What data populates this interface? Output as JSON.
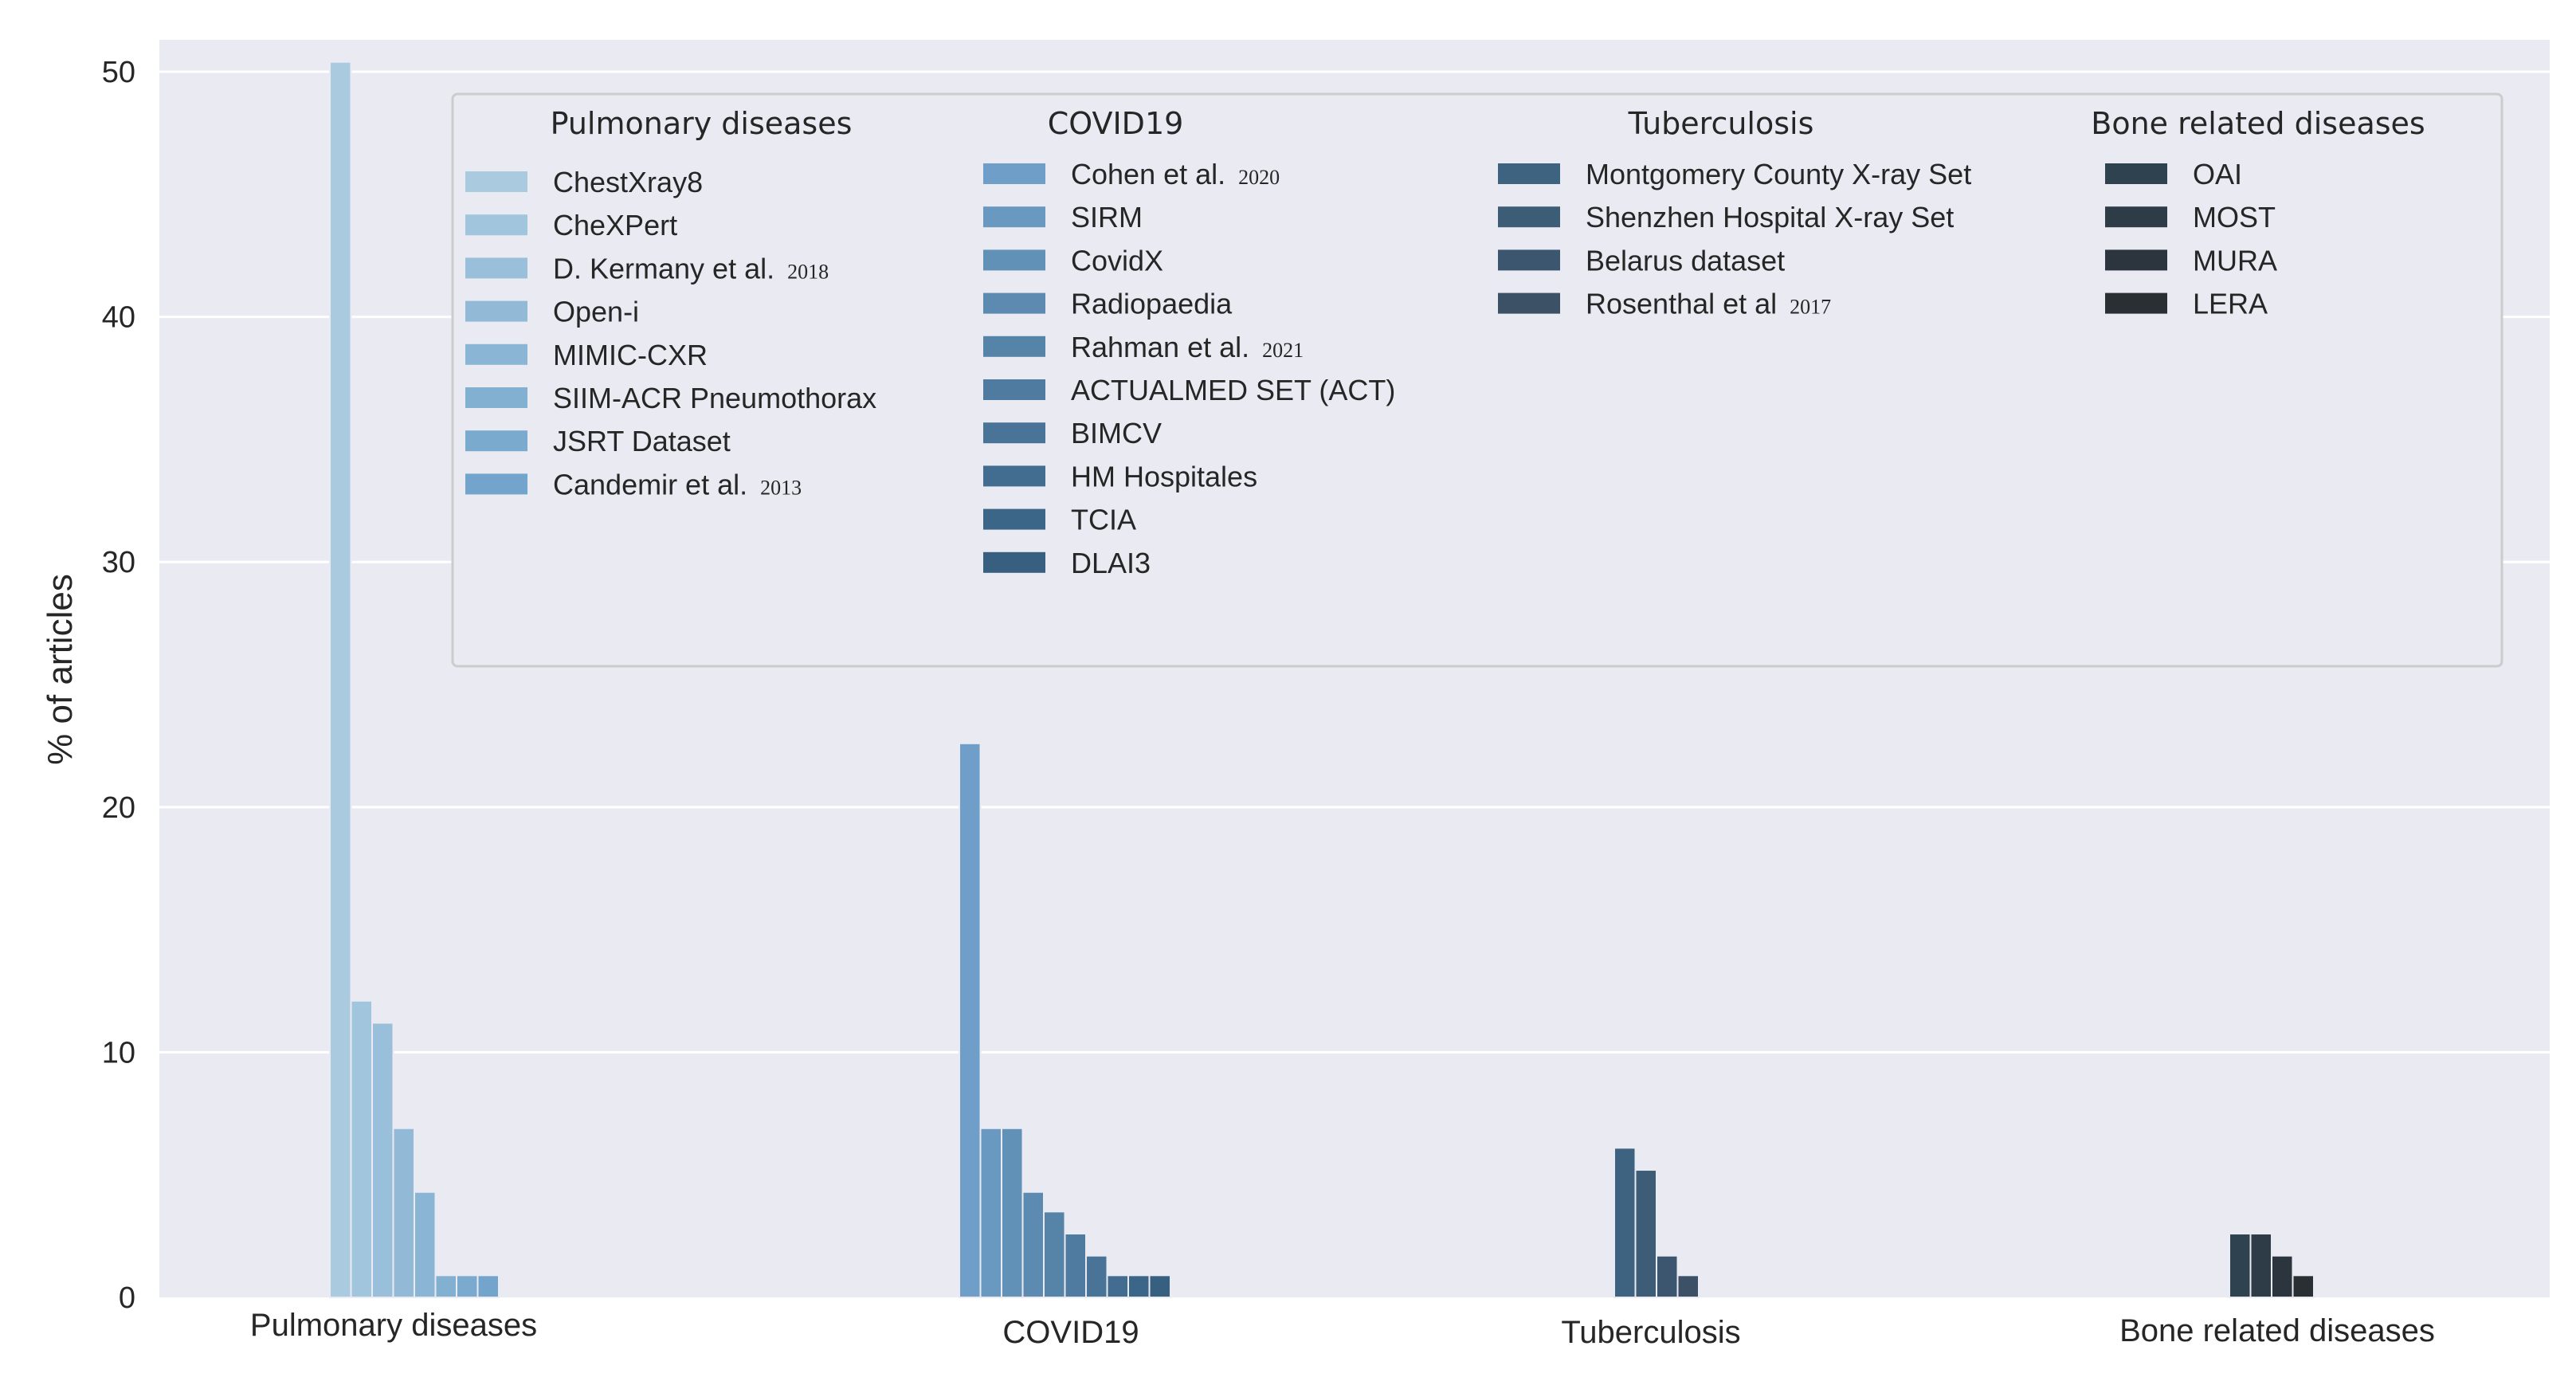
{
  "chart_data": {
    "type": "bar",
    "title": "",
    "xlabel": "",
    "ylabel": "% of articles",
    "ylim": [
      0,
      52
    ],
    "yticks": [
      "0",
      "10",
      "20",
      "30",
      "40",
      "50"
    ],
    "grid": true,
    "legend_position": "top",
    "groups": [
      {
        "name": "Pulmonary diseases",
        "color_range": [
          "#a9cadf",
          "#73a5cc"
        ],
        "datasets": [
          {
            "label": "ChestXray8",
            "year": "",
            "value": 50.4
          },
          {
            "label": "CheXPert",
            "year": "",
            "value": 12.1
          },
          {
            "label": "D. Kermany et al.",
            "year": "2018",
            "value": 11.2
          },
          {
            "label": "Open-i",
            "year": "",
            "value": 6.9
          },
          {
            "label": "MIMIC-CXR",
            "year": "",
            "value": 4.3
          },
          {
            "label": "SIIM-ACR Pneumothorax",
            "year": "",
            "value": 0.9
          },
          {
            "label": "JSRT Dataset",
            "year": "",
            "value": 0.9
          },
          {
            "label": "Candemir et al.",
            "year": "2013",
            "value": 0.9
          }
        ]
      },
      {
        "name": "COVID19",
        "color_range": [
          "#6f9fc8",
          "#365f80"
        ],
        "datasets": [
          {
            "label": "Cohen et al.",
            "year": "2020",
            "value": 22.6
          },
          {
            "label": "SIRM",
            "year": "",
            "value": 6.9
          },
          {
            "label": "CovidX",
            "year": "",
            "value": 6.9
          },
          {
            "label": "Radiopaedia",
            "year": "",
            "value": 4.3
          },
          {
            "label": "Rahman et al.",
            "year": "2021",
            "value": 3.5
          },
          {
            "label": "ACTUALMED SET (ACT)",
            "year": "",
            "value": 2.6
          },
          {
            "label": "BIMCV",
            "year": "",
            "value": 1.7
          },
          {
            "label": "HM Hospitales",
            "year": "",
            "value": 0.9
          },
          {
            "label": "TCIA",
            "year": "",
            "value": 0.9
          },
          {
            "label": "DLAI3",
            "year": "",
            "value": 0.9
          }
        ]
      },
      {
        "name": "Tuberculosis",
        "color_range": [
          "#3d6380",
          "#3c5066"
        ],
        "datasets": [
          {
            "label": "Montgomery County X-ray Set",
            "year": "",
            "value": 6.1
          },
          {
            "label": "Shenzhen Hospital X-ray Set",
            "year": "",
            "value": 5.2
          },
          {
            "label": "Belarus dataset",
            "year": "",
            "value": 1.7
          },
          {
            "label": "Rosenthal et al",
            "year": "2017",
            "value": 0.9
          }
        ]
      },
      {
        "name": "Bone related diseases",
        "color_range": [
          "#2f4250",
          "#2a2f33"
        ],
        "datasets": [
          {
            "label": "OAI",
            "year": "",
            "value": 2.6
          },
          {
            "label": "MOST",
            "year": "",
            "value": 2.6
          },
          {
            "label": "MURA",
            "year": "",
            "value": 1.7
          },
          {
            "label": "LERA",
            "year": "",
            "value": 0.9
          }
        ]
      }
    ]
  },
  "colors": {
    "plot_background": "#eaeaf2",
    "grid": "#ffffff",
    "legend_background": "#eaeaf2",
    "legend_border": "#cccccc"
  }
}
